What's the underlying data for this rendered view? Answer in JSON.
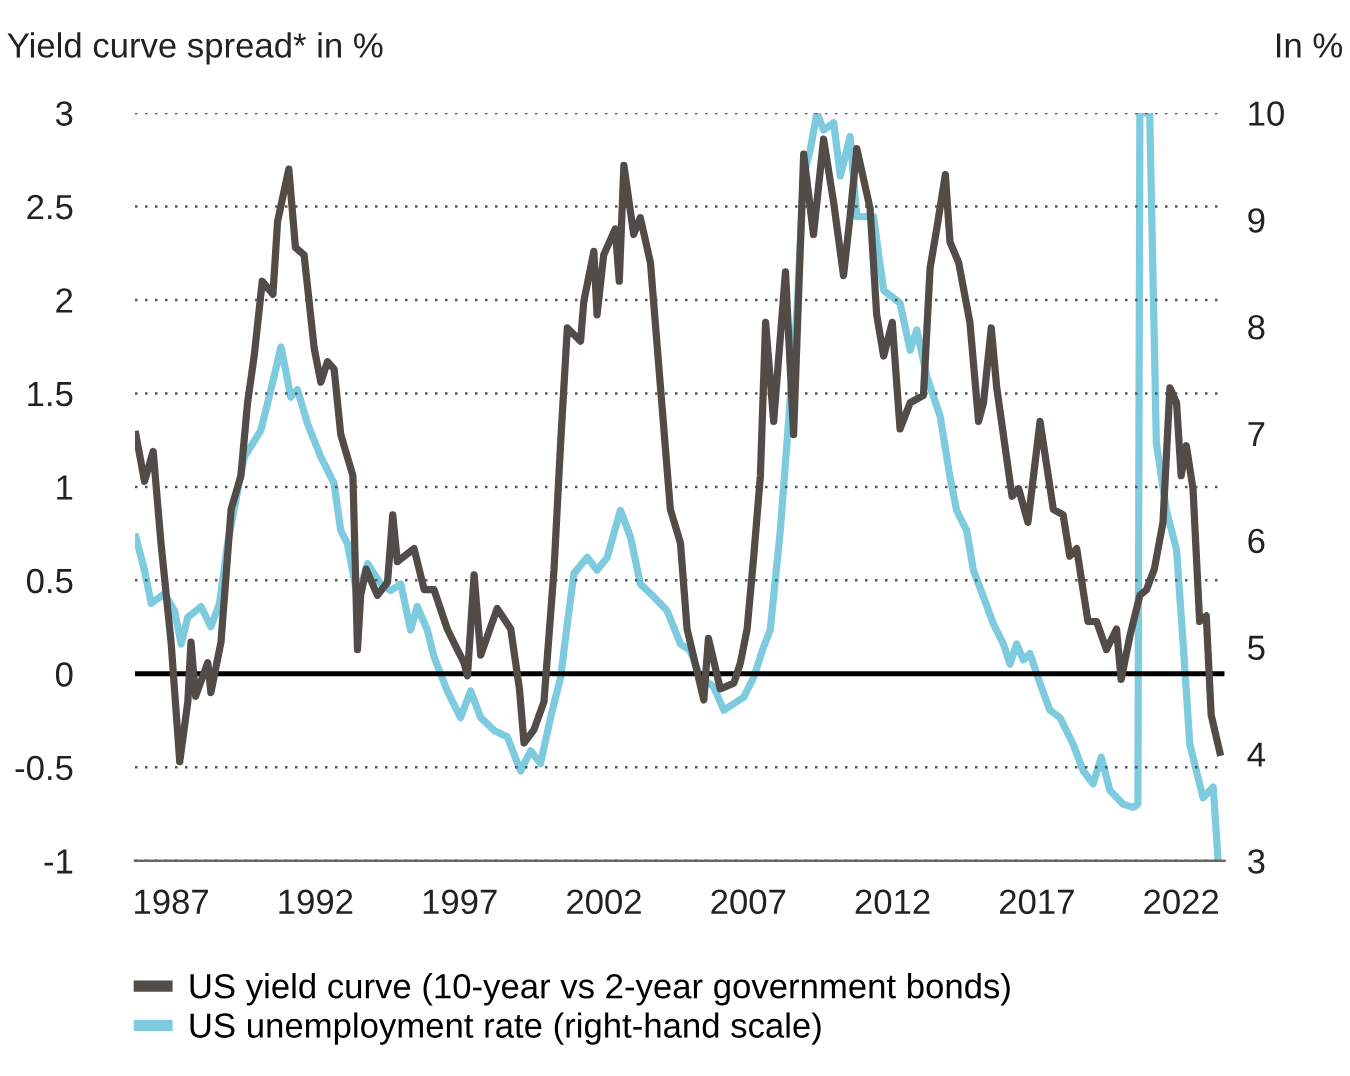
{
  "chart_data": {
    "type": "line",
    "ylabel": "Yield curve spread* in %",
    "y2label": "In %",
    "xlim": [
      1985.75,
      2023.5
    ],
    "xticks": [
      1987,
      1992,
      1997,
      2002,
      2007,
      2012,
      2017,
      2022
    ],
    "ylim": [
      -1,
      3
    ],
    "yticks": [
      -1,
      -0.5,
      0,
      0.5,
      1,
      1.5,
      2,
      2.5,
      3
    ],
    "y2lim": [
      3,
      10
    ],
    "y2ticks": [
      3,
      4,
      5,
      6,
      7,
      8,
      9,
      10
    ],
    "grid": "y",
    "legend": "bottom",
    "line_style": "solid",
    "marker": "none",
    "ref_lines": [
      {
        "axis": "y",
        "value": 0,
        "color": "#000000",
        "line_style": "solid"
      }
    ],
    "series": [
      {
        "name": "US yield curve (10-year vs 2-year government bonds)",
        "color": "#524c48",
        "x": [
          1985.78,
          1986.08,
          1986.38,
          1986.65,
          1987.0,
          1987.3,
          1987.58,
          1987.69,
          1987.85,
          1988.27,
          1988.38,
          1988.73,
          1989.08,
          1989.42,
          1989.65,
          1989.88,
          1990.16,
          1990.53,
          1990.69,
          1991.08,
          1991.31,
          1991.61,
          1991.96,
          1992.19,
          1992.42,
          1992.65,
          1992.88,
          1993.3,
          1993.46,
          1993.57,
          1993.76,
          1994.15,
          1994.5,
          1994.68,
          1994.84,
          1995.42,
          1995.77,
          1996.11,
          1996.57,
          1996.92,
          1997.15,
          1997.27,
          1997.5,
          1997.73,
          1998.3,
          1998.77,
          1999.07,
          1999.23,
          1999.57,
          1999.92,
          2000.27,
          2000.5,
          2000.73,
          2001.19,
          2001.3,
          2001.65,
          2001.76,
          2001.99,
          2002.39,
          2002.53,
          2002.69,
          2003.03,
          2003.26,
          2003.61,
          2003.96,
          2004.3,
          2004.65,
          2004.88,
          2005.46,
          2005.62,
          2006.03,
          2006.5,
          2006.73,
          2006.96,
          2007.19,
          2007.42,
          2007.6,
          2007.88,
          2008.29,
          2008.57,
          2008.92,
          2009.26,
          2009.61,
          2009.96,
          2010.3,
          2010.53,
          2010.76,
          2011.22,
          2011.45,
          2011.69,
          2011.99,
          2012.26,
          2012.61,
          2013.07,
          2013.3,
          2013.53,
          2013.83,
          2013.99,
          2014.29,
          2014.68,
          2014.98,
          2015.15,
          2015.42,
          2015.61,
          2016.14,
          2016.37,
          2016.69,
          2017.11,
          2017.57,
          2017.91,
          2018.14,
          2018.38,
          2018.77,
          2019.07,
          2019.41,
          2019.76,
          2019.92,
          2020.22,
          2020.57,
          2020.8,
          2021.07,
          2021.37,
          2021.61,
          2021.84,
          2022.0,
          2022.18,
          2022.41,
          2022.64,
          2022.87,
          2023.04,
          2023.34
        ],
        "values": [
          1.28,
          1.03,
          1.19,
          0.7,
          0.17,
          -0.47,
          -0.15,
          0.17,
          -0.12,
          0.06,
          -0.1,
          0.17,
          0.88,
          1.06,
          1.45,
          1.7,
          2.1,
          2.03,
          2.42,
          2.7,
          2.28,
          2.24,
          1.74,
          1.56,
          1.67,
          1.63,
          1.28,
          1.06,
          0.13,
          0.42,
          0.56,
          0.42,
          0.49,
          0.85,
          0.6,
          0.67,
          0.45,
          0.45,
          0.24,
          0.13,
          0.06,
          -0.01,
          0.53,
          0.1,
          0.35,
          0.24,
          -0.08,
          -0.37,
          -0.3,
          -0.15,
          0.56,
          1.24,
          1.85,
          1.78,
          1.99,
          2.26,
          1.92,
          2.24,
          2.38,
          2.1,
          2.72,
          2.35,
          2.44,
          2.2,
          1.53,
          0.88,
          0.7,
          0.24,
          -0.14,
          0.19,
          -0.08,
          -0.05,
          0.06,
          0.24,
          0.63,
          1.06,
          1.88,
          1.35,
          2.15,
          1.28,
          2.78,
          2.35,
          2.86,
          2.52,
          2.13,
          2.45,
          2.81,
          2.49,
          1.92,
          1.7,
          1.88,
          1.31,
          1.45,
          1.49,
          2.17,
          2.38,
          2.67,
          2.31,
          2.2,
          1.88,
          1.35,
          1.45,
          1.85,
          1.53,
          0.95,
          0.99,
          0.81,
          1.35,
          0.88,
          0.85,
          0.63,
          0.67,
          0.28,
          0.28,
          0.13,
          0.24,
          -0.03,
          0.2,
          0.42,
          0.45,
          0.56,
          0.81,
          1.53,
          1.45,
          1.06,
          1.22,
          0.99,
          0.28,
          0.31,
          -0.22,
          -0.42
        ]
      },
      {
        "name": "US unemployment rate (right-hand scale)",
        "color": "#7ecbe0",
        "axis": "y2",
        "x": [
          1985.78,
          1986.08,
          1986.31,
          1986.77,
          1987.12,
          1987.35,
          1987.58,
          1988.04,
          1988.38,
          1988.68,
          1988.96,
          1989.31,
          1989.54,
          1990.11,
          1990.46,
          1990.81,
          1991.15,
          1991.38,
          1991.73,
          1992.19,
          1992.65,
          1992.88,
          1993.11,
          1993.46,
          1993.81,
          1994.27,
          1994.61,
          1994.96,
          1995.3,
          1995.53,
          1995.88,
          1996.11,
          1996.57,
          1997.03,
          1997.38,
          1997.73,
          1998.19,
          1998.65,
          1999.11,
          1999.46,
          1999.8,
          2000.15,
          2000.5,
          2000.73,
          2000.96,
          2001.42,
          2001.76,
          2002.11,
          2002.57,
          2002.92,
          2003.26,
          2003.73,
          2004.19,
          2004.65,
          2004.98,
          2005.34,
          2005.8,
          2006.15,
          2006.5,
          2006.84,
          2007.19,
          2007.53,
          2007.76,
          2008.11,
          2008.34,
          2008.69,
          2008.92,
          2009.15,
          2009.38,
          2009.61,
          2009.96,
          2010.19,
          2010.53,
          2010.76,
          2011.34,
          2011.69,
          2012.26,
          2012.61,
          2012.84,
          2013.19,
          2013.65,
          2013.99,
          2014.22,
          2014.57,
          2014.8,
          2015.15,
          2015.49,
          2015.84,
          2016.07,
          2016.3,
          2016.53,
          2016.76,
          2017.11,
          2017.45,
          2017.8,
          2018.26,
          2018.61,
          2018.95,
          2019.23,
          2019.53,
          2019.99,
          2020.34,
          2020.5,
          2020.57,
          2020.91,
          2021.14,
          2021.49,
          2021.84,
          2022.07,
          2022.3,
          2022.53,
          2022.76,
          2023.11,
          2023.28
        ],
        "values": [
          6.03,
          5.72,
          5.41,
          5.5,
          5.34,
          5.03,
          5.28,
          5.38,
          5.19,
          5.41,
          5.97,
          6.47,
          6.78,
          7.03,
          7.41,
          7.81,
          7.34,
          7.41,
          7.09,
          6.78,
          6.53,
          6.09,
          5.97,
          5.47,
          5.78,
          5.59,
          5.53,
          5.59,
          5.16,
          5.38,
          5.16,
          4.91,
          4.59,
          4.34,
          4.59,
          4.34,
          4.22,
          4.16,
          3.84,
          4.03,
          3.91,
          4.34,
          4.72,
          5.22,
          5.69,
          5.84,
          5.72,
          5.84,
          6.28,
          6.03,
          5.59,
          5.47,
          5.34,
          5.03,
          4.97,
          4.72,
          4.63,
          4.41,
          4.47,
          4.53,
          4.72,
          5.0,
          5.16,
          6.09,
          6.91,
          8.16,
          9.41,
          9.66,
          10.0,
          9.84,
          9.91,
          9.41,
          9.78,
          9.03,
          9.03,
          8.34,
          8.22,
          7.78,
          7.97,
          7.53,
          7.16,
          6.59,
          6.28,
          6.09,
          5.72,
          5.47,
          5.22,
          5.03,
          4.84,
          5.03,
          4.88,
          4.94,
          4.66,
          4.41,
          4.34,
          4.09,
          3.84,
          3.72,
          3.97,
          3.66,
          3.53,
          3.5,
          3.53,
          10.0,
          10.0,
          6.91,
          6.28,
          5.91,
          5.03,
          4.09,
          3.84,
          3.59,
          3.69,
          3.0
        ]
      }
    ]
  }
}
